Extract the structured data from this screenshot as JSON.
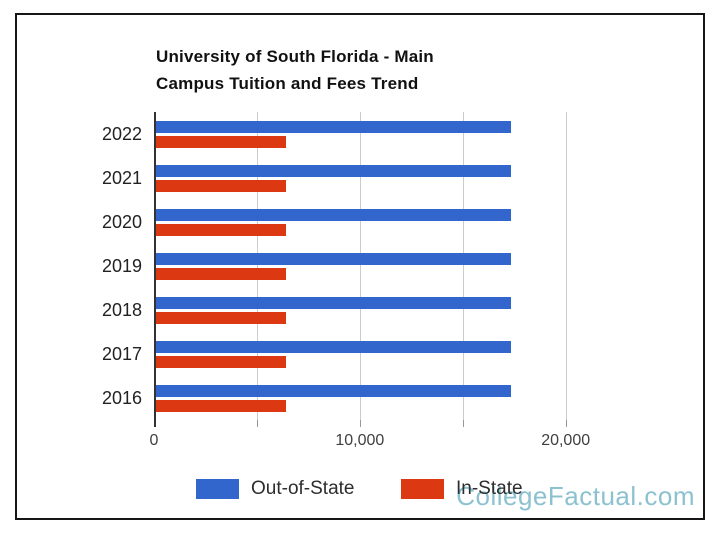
{
  "watermark": {
    "text": "CollegeFactual.com",
    "color": "#8cc2d0"
  },
  "chart_data": {
    "type": "bar",
    "orientation": "horizontal",
    "title": "University of South Florida - Main Campus Tuition and Fees Trend",
    "title_line1": "University of South Florida - Main",
    "title_line2": "Campus Tuition and Fees Trend",
    "categories": [
      "2022",
      "2021",
      "2020",
      "2019",
      "2018",
      "2017",
      "2016"
    ],
    "series": [
      {
        "name": "Out-of-State",
        "color": "#3366cc",
        "values": [
          17324,
          17324,
          17324,
          17324,
          17324,
          17324,
          17324
        ]
      },
      {
        "name": "In-State",
        "color": "#dc3912",
        "values": [
          6410,
          6410,
          6410,
          6410,
          6410,
          6410,
          6410
        ]
      }
    ],
    "xlim": [
      0,
      24000
    ],
    "gridline_step": 5000,
    "x_ticks": [
      {
        "value": 0,
        "label": "0"
      },
      {
        "value": 10000,
        "label": "10,000"
      },
      {
        "value": 20000,
        "label": "20,000"
      }
    ],
    "grid": true,
    "legend_position": "bottom",
    "axis_color": "#333333",
    "gridline_color": "#cccccc"
  }
}
